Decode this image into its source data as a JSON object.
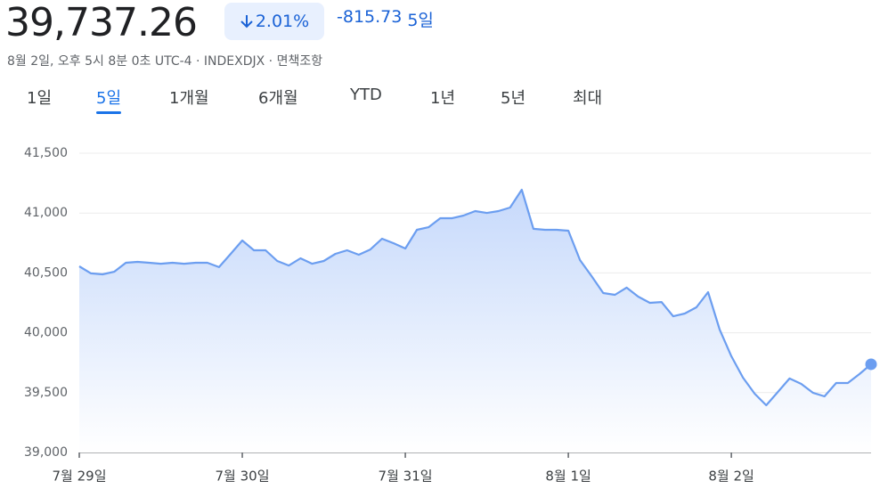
{
  "header": {
    "price": "39,737.26",
    "change_pct": "2.01%",
    "change_abs": "-815.73",
    "period": "5일",
    "subtitle": "8월 2일, 오후 5시 8분 0초 UTC-4 · INDEXDJX · 면책조항"
  },
  "tabs": [
    "1일",
    "5일",
    "1개월",
    "6개월",
    "YTD",
    "1년",
    "5년",
    "최대"
  ],
  "active_tab": 1,
  "chart_data": {
    "type": "line",
    "color": "#6c9ef0",
    "grid": true,
    "categories": [
      "7월 29일",
      null,
      null,
      null,
      null,
      null,
      null,
      null,
      null,
      null,
      null,
      null,
      null,
      null,
      "7월 30일",
      null,
      null,
      null,
      null,
      null,
      null,
      null,
      null,
      null,
      null,
      null,
      null,
      null,
      "7월 31일",
      null,
      null,
      null,
      null,
      null,
      null,
      null,
      null,
      null,
      null,
      null,
      null,
      null,
      "8월 1일",
      null,
      null,
      null,
      null,
      null,
      null,
      null,
      null,
      null,
      null,
      null,
      null,
      null,
      "8월 2일",
      null,
      null,
      null,
      null,
      null,
      null,
      null,
      null,
      null,
      null,
      null,
      null
    ],
    "values": [
      40555,
      40496,
      40488,
      40510,
      40585,
      40592,
      40585,
      40577,
      40585,
      40577,
      40585,
      40585,
      40548,
      40659,
      40771,
      40689,
      40689,
      40600,
      40562,
      40622,
      40577,
      40600,
      40659,
      40689,
      40652,
      40696,
      40786,
      40748,
      40704,
      40860,
      40882,
      40957,
      40957,
      40979,
      41016,
      41001,
      41016,
      41046,
      41195,
      40868,
      40860,
      40860,
      40853,
      40607,
      40473,
      40332,
      40317,
      40377,
      40302,
      40250,
      40257,
      40138,
      40161,
      40213,
      40339,
      40027,
      39804,
      39625,
      39491,
      39394,
      39506,
      39618,
      39573,
      39499,
      39469,
      39580,
      39580,
      39655,
      39737
    ],
    "ylim": [
      39000,
      41500
    ],
    "yticks": [
      {
        "value": 39000,
        "label": "39,000"
      },
      {
        "value": 39500,
        "label": "39,500"
      },
      {
        "value": 40000,
        "label": "40,000"
      },
      {
        "value": 40500,
        "label": "40,500"
      },
      {
        "value": 41000,
        "label": "41,000"
      },
      {
        "value": 41500,
        "label": "41,500"
      }
    ]
  }
}
